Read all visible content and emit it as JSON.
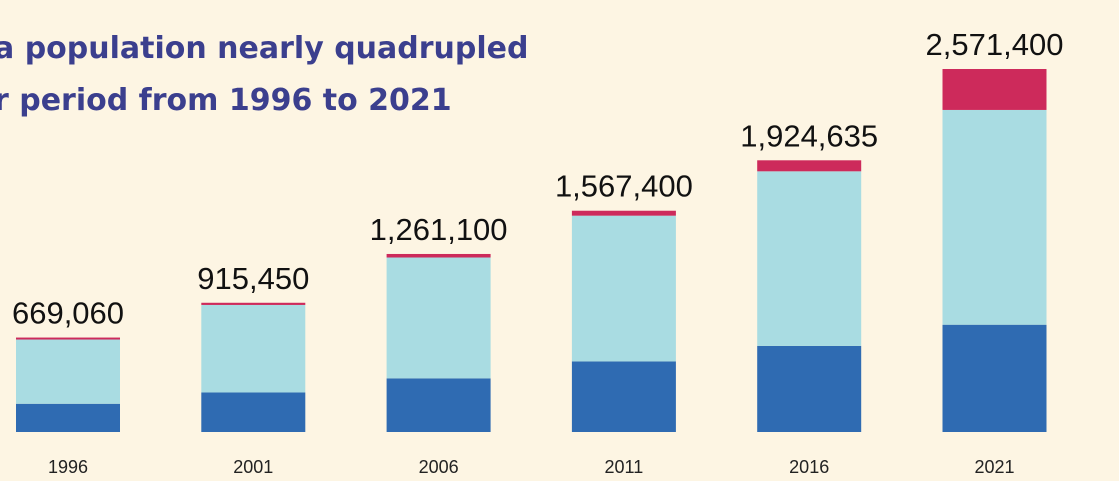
{
  "chart_data": {
    "type": "stacked-bar",
    "title_lines": [
      "a population nearly quadrupled",
      "r period from 1996 to 2021"
    ],
    "categories": [
      "1996",
      "2001",
      "2006",
      "2011",
      "2016",
      "2021"
    ],
    "series": [
      {
        "color": "#2f6bb2",
        "values": [
          200000,
          280000,
          380000,
          500000,
          610000,
          760000
        ]
      },
      {
        "color": "#a9dce2",
        "values": [
          455000,
          620000,
          856100,
          1032400,
          1236635,
          1521400
        ]
      },
      {
        "color": "#cd2a5b",
        "values": [
          14060,
          15450,
          25000,
          35000,
          78000,
          290000
        ]
      }
    ],
    "totals": [
      669060,
      915450,
      1261100,
      1567400,
      1924635,
      2571400
    ],
    "total_labels": [
      "669,060",
      "915,450",
      "1,261,100",
      "1,567,400",
      "1,924,635",
      "2,571,400"
    ]
  }
}
